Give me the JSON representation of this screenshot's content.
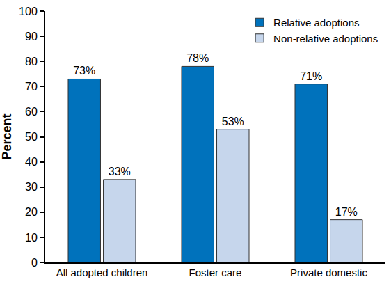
{
  "chart_data": {
    "type": "bar",
    "y_label": "Percent",
    "categories": [
      "All adopted children",
      "Foster care",
      "Private domestic"
    ],
    "series": [
      {
        "name": "Relative adoptions",
        "color": "#0072bc",
        "values": [
          73,
          78,
          71
        ],
        "value_labels": [
          "73%",
          "78%",
          "71%"
        ]
      },
      {
        "name": "Non-relative adoptions",
        "color": "#c6d6ec",
        "values": [
          33,
          53,
          17
        ],
        "value_labels": [
          "33%",
          "53%",
          "17%"
        ]
      }
    ],
    "ylim": [
      0,
      100
    ],
    "yticks": [
      0,
      10,
      20,
      30,
      40,
      50,
      60,
      70,
      80,
      90,
      100
    ],
    "grid": false,
    "legend": "top right",
    "data_labels": true
  }
}
